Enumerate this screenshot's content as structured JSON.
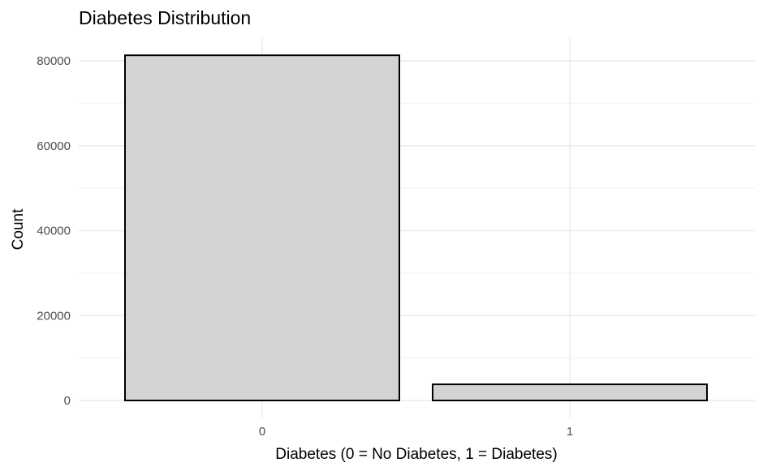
{
  "chart_data": {
    "type": "bar",
    "title": "Diabetes Distribution",
    "xlabel": "Diabetes (0 = No Diabetes, 1 = Diabetes)",
    "ylabel": "Count",
    "categories": [
      "0",
      "1"
    ],
    "values": [
      81300,
      3800
    ],
    "ylim": [
      0,
      84000
    ],
    "yticks": [
      0,
      20000,
      40000,
      60000,
      80000
    ],
    "ytick_labels": [
      "0",
      "20000",
      "40000",
      "60000",
      "80000"
    ],
    "grid": true,
    "legend": "none",
    "colors": {
      "bar_fill": "#d3d3d3",
      "bar_stroke": "#000000",
      "grid_major": "#ebebeb",
      "grid_minor": "#f2f2f2",
      "tick_text": "#4d4d4d",
      "title_text": "#000000"
    }
  }
}
